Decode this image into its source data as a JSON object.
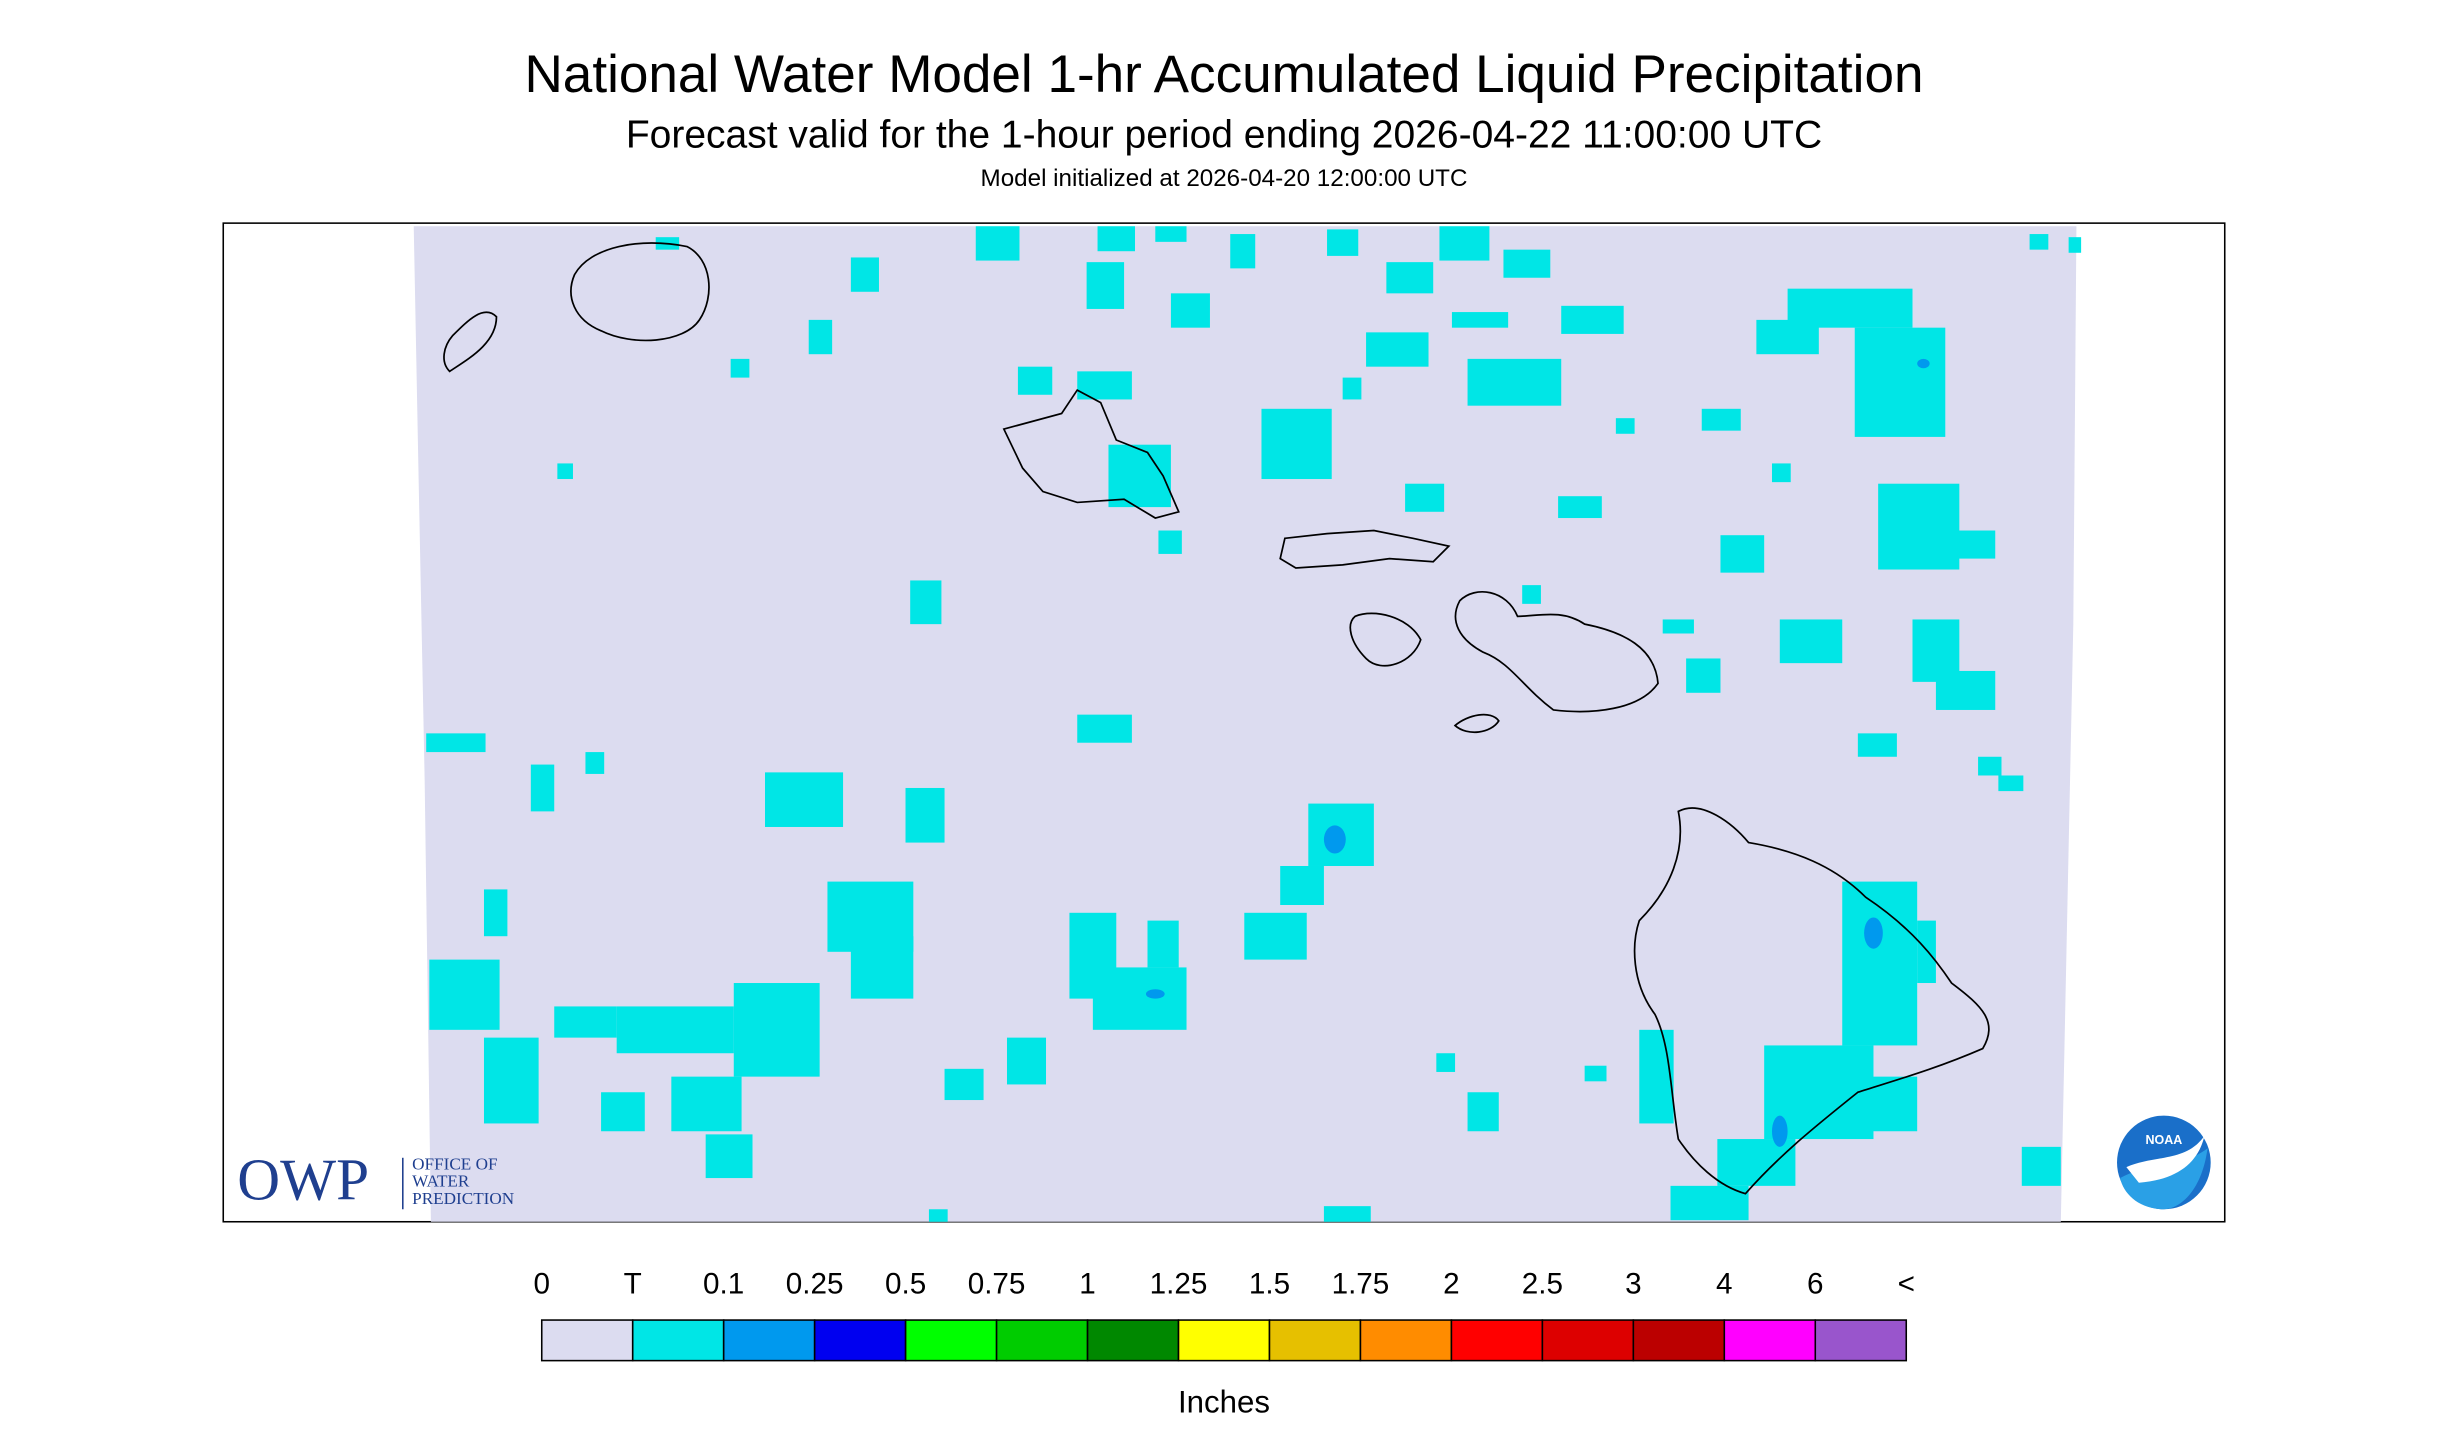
{
  "header": {
    "title": "National Water Model 1-hr Accumulated Liquid Precipitation",
    "subtitle": "Forecast valid for the 1-hour period ending 2026-04-22 11:00:00 UTC",
    "note": "Model initialized at 2026-04-20 12:00:00 UTC"
  },
  "logos": {
    "owp": "OWP",
    "owp_lines": [
      "OFFICE OF",
      "WATER",
      "PREDICTION"
    ],
    "noaa": "NOAA"
  },
  "legend": {
    "labels": [
      "0",
      "T",
      "0.1",
      "0.25",
      "0.5",
      "0.75",
      "1",
      "1.25",
      "1.5",
      "1.75",
      "2",
      "2.5",
      "3",
      "4",
      "6",
      "<"
    ],
    "colors": [
      "#dcdcf0",
      "#00e6e6",
      "#0099ee",
      "#0000f0",
      "#00ff00",
      "#00cc00",
      "#008800",
      "#ffff00",
      "#e6c000",
      "#ff8c00",
      "#ff0000",
      "#dd0000",
      "#bb0000",
      "#ff00ff",
      "#9955cc"
    ],
    "units": "Inches"
  }
}
